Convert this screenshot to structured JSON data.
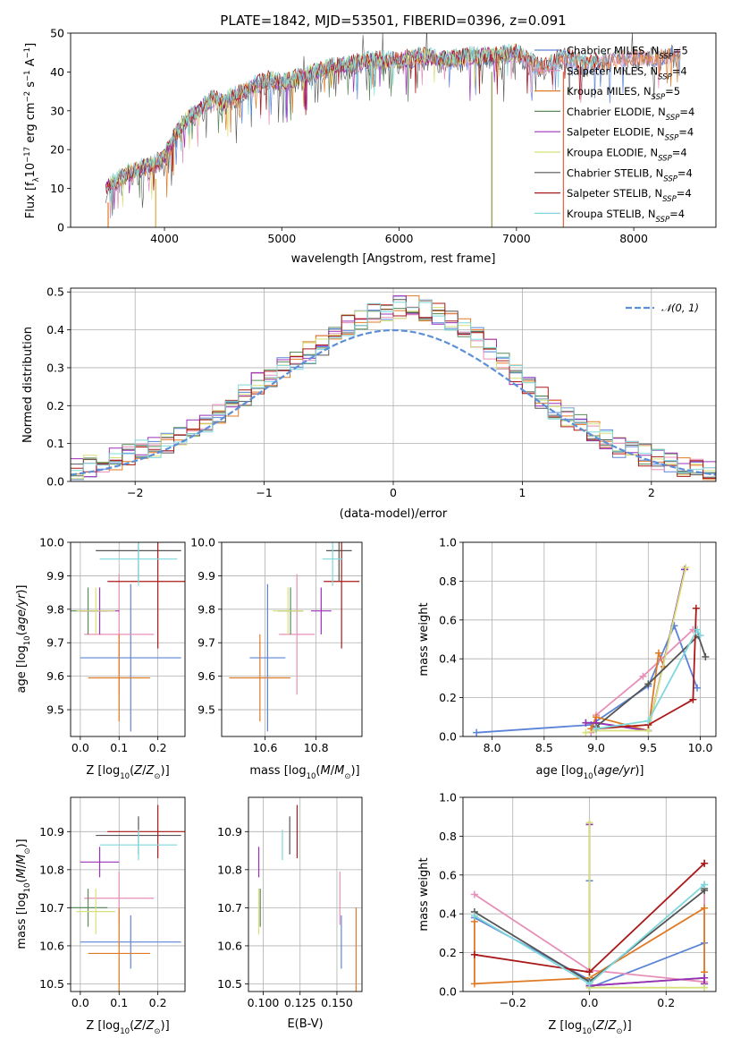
{
  "figure_title": "PLATE=1842, MJD=53501, FIBERID=0396, z=0.091",
  "colors": {
    "Chabrier MILES": "#5b84d8",
    "Salpeter MILES": "#e88fb8",
    "Kroupa MILES": "#e07b25",
    "Chabrier ELODIE": "#5a8a5a",
    "Salpeter ELODIE": "#9b30b8",
    "Kroupa ELODIE": "#d7e07a",
    "Chabrier STELIB": "#555555",
    "Salpeter STELIB": "#aa1a1a",
    "Kroupa STELIB": "#7fd8dd",
    "gaussian": "#5b8fd8"
  },
  "models": [
    {
      "name": "Chabrier MILES",
      "nssp": "5",
      "age": 9.655,
      "age_err": 0.22,
      "Z": 0.13,
      "Z_err": 0.13,
      "mass": 10.61,
      "mass_err": 0.07,
      "ebv": 0.153,
      "ages": [
        7.85,
        8.95,
        9.5,
        9.75,
        9.97
      ],
      "weights": [
        0.02,
        0.06,
        0.26,
        0.57,
        0.25
      ],
      "metals": [
        -0.3,
        0.0,
        0.0,
        0.0,
        0.3
      ],
      "mw": [
        0.38,
        0.06,
        0.57,
        0.02,
        0.25
      ]
    },
    {
      "name": "Salpeter MILES",
      "nssp": "4",
      "age": 9.725,
      "age_err": 0.18,
      "Z": 0.1,
      "Z_err": 0.09,
      "mass": 10.725,
      "mass_err": 0.07,
      "ebv": 0.152,
      "ages": [
        8.95,
        9.0,
        9.45,
        9.93
      ],
      "weights": [
        0.02,
        0.11,
        0.31,
        0.55
      ],
      "metals": [
        -0.3,
        0.0,
        0.3,
        0.3
      ],
      "mw": [
        0.5,
        0.11,
        0.05,
        0.55
      ]
    },
    {
      "name": "Kroupa MILES",
      "nssp": "5",
      "age": 9.595,
      "age_err": 0.13,
      "Z": 0.1,
      "Z_err": 0.08,
      "mass": 10.58,
      "mass_err": 0.12,
      "ebv": 0.163,
      "ages": [
        8.95,
        9.0,
        9.5,
        9.6,
        9.65
      ],
      "weights": [
        0.04,
        0.1,
        0.03,
        0.43,
        0.36
      ],
      "metals": [
        -0.3,
        -0.3,
        0.0,
        0.3,
        0.3
      ],
      "mw": [
        0.36,
        0.04,
        0.07,
        0.43,
        0.1
      ]
    },
    {
      "name": "Chabrier ELODIE",
      "nssp": "4",
      "age": 9.795,
      "age_err": 0.07,
      "Z": 0.02,
      "Z_err": 0.05,
      "mass": 10.7,
      "mass_err": 0.05,
      "ebv": 0.098,
      "ages": [
        8.9,
        9.0,
        9.5,
        9.85
      ],
      "weights": [
        0.07,
        0.07,
        0.03,
        0.86
      ],
      "metals": [
        0.0,
        0.0,
        0.3,
        0.3
      ],
      "mw": [
        0.86,
        0.03,
        0.07,
        0.04
      ]
    },
    {
      "name": "Salpeter ELODIE",
      "nssp": "4",
      "age": 9.795,
      "age_err": 0.07,
      "Z": 0.05,
      "Z_err": 0.05,
      "mass": 10.82,
      "mass_err": 0.04,
      "ebv": 0.097,
      "ages": [
        8.9,
        9.0,
        9.5,
        9.85
      ],
      "weights": [
        0.07,
        0.07,
        0.03,
        0.86
      ],
      "metals": [
        0.0,
        0.0,
        0.3,
        0.3
      ],
      "mw": [
        0.86,
        0.03,
        0.07,
        0.04
      ]
    },
    {
      "name": "Kroupa ELODIE",
      "nssp": "4",
      "age": 9.795,
      "age_err": 0.07,
      "Z": 0.04,
      "Z_err": 0.05,
      "mass": 10.69,
      "mass_err": 0.06,
      "ebv": 0.097,
      "ages": [
        8.9,
        9.0,
        9.5,
        9.86
      ],
      "weights": [
        0.02,
        0.03,
        0.03,
        0.87
      ],
      "metals": [
        0.0,
        0.0,
        0.3,
        0.3
      ],
      "mw": [
        0.87,
        0.02,
        0.02,
        0.02
      ]
    },
    {
      "name": "Chabrier STELIB",
      "nssp": "4",
      "age": 9.975,
      "age_err": 0.09,
      "Z": 0.15,
      "Z_err": 0.11,
      "mass": 10.89,
      "mass_err": 0.05,
      "ebv": 0.118,
      "ages": [
        9.0,
        9.5,
        9.98,
        10.05
      ],
      "weights": [
        0.05,
        0.27,
        0.52,
        0.41
      ],
      "metals": [
        -0.3,
        0.0,
        0.3,
        0.3
      ],
      "mw": [
        0.41,
        0.05,
        0.52,
        0.53
      ]
    },
    {
      "name": "Salpeter STELIB",
      "nssp": "4",
      "age": 9.883,
      "age_err": 0.2,
      "Z": 0.2,
      "Z_err": 0.13,
      "mass": 10.9,
      "mass_err": 0.07,
      "ebv": 0.123,
      "ages": [
        9.0,
        9.5,
        9.93,
        9.96
      ],
      "weights": [
        0.04,
        0.06,
        0.19,
        0.66
      ],
      "metals": [
        -0.3,
        0.0,
        0.3,
        0.3
      ],
      "mw": [
        0.19,
        0.1,
        0.66,
        0.66
      ]
    },
    {
      "name": "Kroupa STELIB",
      "nssp": "4",
      "age": 9.95,
      "age_err": 0.08,
      "Z": 0.15,
      "Z_err": 0.1,
      "mass": 10.865,
      "mass_err": 0.04,
      "ebv": 0.113,
      "ages": [
        9.0,
        9.5,
        9.97,
        10.0
      ],
      "weights": [
        0.04,
        0.08,
        0.55,
        0.52
      ],
      "metals": [
        -0.3,
        0.0,
        0.3,
        0.3
      ],
      "mw": [
        0.39,
        0.04,
        0.55,
        0.55
      ]
    }
  ],
  "chart_data": [
    {
      "type": "line",
      "panel": "spectrum",
      "xlabel": "wavelength [Angstrom, rest frame]",
      "xlim": [
        3200,
        8700
      ],
      "ylim": [
        0,
        50
      ],
      "xticks": [
        4000,
        5000,
        6000,
        7000,
        8000
      ],
      "yticks": [
        0,
        10,
        20,
        30,
        40,
        50
      ],
      "x": [
        3500,
        3600,
        3700,
        3800,
        3900,
        4000,
        4100,
        4200,
        4300,
        4400,
        4500,
        4600,
        4700,
        4800,
        4900,
        5000,
        5200,
        5400,
        5600,
        5800,
        6000,
        6200,
        6400,
        6600,
        6800,
        7000,
        7200,
        7400,
        7600,
        7800,
        8000,
        8200,
        8400
      ],
      "y": [
        10,
        12,
        14,
        15,
        16,
        18,
        24,
        28,
        30,
        33,
        32,
        34,
        35,
        37,
        38,
        37,
        39,
        41,
        42,
        43,
        43,
        44,
        43,
        44,
        44,
        45,
        41,
        44,
        42,
        43,
        44,
        44,
        45
      ],
      "glitch_x": [
        3520,
        3925,
        6790,
        7400
      ]
    },
    {
      "type": "bar",
      "panel": "residual histogram",
      "xlabel": "(data-model)/error",
      "ylabel": "Normed distribution",
      "xlim": [
        -2.5,
        2.5
      ],
      "ylim": [
        0,
        0.51
      ],
      "xticks": [
        -2,
        -1,
        0,
        1,
        2
      ],
      "yticks": [
        0.0,
        0.1,
        0.2,
        0.3,
        0.4,
        0.5
      ],
      "bin_width": 0.1,
      "values": [
        0.03,
        0.04,
        0.05,
        0.06,
        0.07,
        0.08,
        0.09,
        0.1,
        0.12,
        0.14,
        0.16,
        0.18,
        0.2,
        0.23,
        0.26,
        0.28,
        0.3,
        0.32,
        0.34,
        0.36,
        0.39,
        0.41,
        0.43,
        0.44,
        0.45,
        0.46,
        0.46,
        0.45,
        0.44,
        0.42,
        0.4,
        0.38,
        0.35,
        0.32,
        0.28,
        0.25,
        0.22,
        0.19,
        0.17,
        0.15,
        0.13,
        0.11,
        0.09,
        0.08,
        0.07,
        0.06,
        0.05,
        0.04,
        0.04,
        0.03
      ],
      "legend": "𝒩(0, 1)"
    },
    {
      "type": "scatter",
      "panel": "age vs Z",
      "xlabel": "Z [log10(Z/Z⊙)]",
      "ylabel": "age [log10(age/yr)]",
      "xlim": [
        -0.025,
        0.27
      ],
      "ylim": [
        9.42,
        10.0
      ],
      "xticks": [
        0.0,
        0.1,
        0.2
      ],
      "yticks": [
        9.5,
        9.6,
        9.7,
        9.8,
        9.9,
        10.0
      ]
    },
    {
      "type": "scatter",
      "panel": "age vs mass",
      "xlabel": "mass [log10(M/M⊙)]",
      "ylim": [
        9.42,
        10.0
      ],
      "xlim": [
        10.43,
        10.98
      ],
      "xticks": [
        10.6,
        10.8
      ],
      "yticks": [
        9.5,
        9.6,
        9.7,
        9.8,
        9.9,
        10.0
      ]
    },
    {
      "type": "line",
      "panel": "mass weight vs age",
      "xlabel": "age [log10(age/yr)]",
      "ylabel": "mass weight",
      "xlim": [
        7.72,
        10.15
      ],
      "ylim": [
        0,
        1
      ],
      "xticks": [
        8.0,
        8.5,
        9.0,
        9.5,
        10.0
      ],
      "yticks": [
        0.0,
        0.2,
        0.4,
        0.6,
        0.8,
        1.0
      ]
    },
    {
      "type": "scatter",
      "panel": "mass vs Z",
      "xlabel": "Z [log10(Z/Z⊙)]",
      "ylabel": "mass [log10(M/M⊙)]",
      "xlim": [
        -0.025,
        0.27
      ],
      "ylim": [
        10.48,
        10.99
      ],
      "xticks": [
        0.0,
        0.1,
        0.2
      ],
      "yticks": [
        10.5,
        10.6,
        10.7,
        10.8,
        10.9
      ]
    },
    {
      "type": "scatter",
      "panel": "mass vs E(B-V)",
      "xlabel": "E(B-V)",
      "xlim": [
        0.09,
        0.167
      ],
      "ylim": [
        10.48,
        10.99
      ],
      "xticks": [
        0.1,
        0.125,
        0.15
      ],
      "yticks": [
        10.5,
        10.6,
        10.7,
        10.8,
        10.9
      ]
    },
    {
      "type": "line",
      "panel": "mass weight vs Z",
      "xlabel": "Z [log10(Z/Z⊙)]",
      "ylabel": "mass weight",
      "xlim": [
        -0.33,
        0.33
      ],
      "ylim": [
        0,
        1
      ],
      "xticks": [
        -0.2,
        0.0,
        0.2
      ],
      "yticks": [
        0.0,
        0.2,
        0.4,
        0.6,
        0.8,
        1.0
      ]
    }
  ],
  "axis_labels": {
    "spec_y": "Flux [f",
    "spec_y2": "10",
    "spec_y3": "−17",
    "spec_y4": " erg cm",
    "spec_y5": "−2",
    "spec_y6": " s",
    "spec_y7": "−1",
    "spec_y8": " A",
    "spec_y9": "−1",
    "spec_y10": "]"
  }
}
